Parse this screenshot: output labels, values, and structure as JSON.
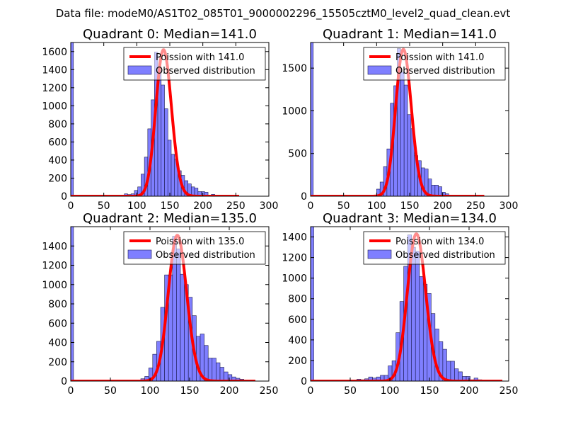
{
  "figure": {
    "suptitle": "Data file: modeM0/AS1T02_085T01_9000002296_15505cztM0_level2_quad_clean.evt"
  },
  "colors": {
    "hist_fill": "#7f7fff",
    "hist_edge": "#1a1a4d",
    "poisson_line": "#ff0000"
  },
  "chart_data": [
    {
      "type": "bar",
      "title": "Quadrant 0: Median=141.0",
      "xlabel": "",
      "ylabel": "",
      "xlim": [
        0,
        300
      ],
      "ylim": [
        0,
        1700
      ],
      "xticks": [
        0,
        50,
        100,
        150,
        200,
        250,
        300
      ],
      "yticks": [
        0,
        200,
        400,
        600,
        800,
        1000,
        1200,
        1400,
        1600
      ],
      "legend": {
        "placement": "top-right",
        "entries": [
          "Poission with 141.0",
          "Observed distribution"
        ]
      },
      "zero_bin": {
        "start": 0,
        "width": 4,
        "value": 1700
      },
      "bins": {
        "start": 71,
        "width": 5.07,
        "values": [
          5,
          13,
          26,
          18,
          26,
          64,
          103,
          244,
          432,
          745,
          1066,
          1593,
          1388,
          1230,
          967,
          620,
          463,
          411,
          282,
          231,
          172,
          136,
          103,
          90,
          51,
          51,
          44,
          13,
          21,
          13,
          5
        ]
      },
      "poisson": {
        "mean": 141.0,
        "peak": 1620,
        "x_range": [
          0,
          255
        ]
      }
    },
    {
      "type": "bar",
      "title": "Quadrant 1: Median=141.0",
      "xlabel": "",
      "ylabel": "",
      "xlim": [
        0,
        300
      ],
      "ylim": [
        0,
        1800
      ],
      "xticks": [
        0,
        50,
        100,
        150,
        200,
        250,
        300
      ],
      "yticks": [
        0,
        500,
        1000,
        1500
      ],
      "legend": {
        "placement": "top-right",
        "entries": [
          "Poission with 141.0",
          "Observed distribution"
        ]
      },
      "zero_bin": {
        "start": 0,
        "width": 4,
        "value": 1800
      },
      "bins": {
        "start": 79.2,
        "width": 5.2,
        "values": [
          14,
          14,
          14,
          14,
          83,
          166,
          346,
          554,
          1089,
          1294,
          1730,
          1454,
          1302,
          956,
          790,
          476,
          416,
          332,
          319,
          202,
          130,
          130,
          111,
          47,
          28,
          14,
          5,
          5,
          5,
          5,
          3,
          3
        ]
      },
      "poisson": {
        "mean": 141.0,
        "peak": 1720,
        "x_range": [
          0,
          263
        ]
      }
    },
    {
      "type": "bar",
      "title": "Quadrant 2: Median=135.0",
      "xlabel": "",
      "ylabel": "",
      "xlim": [
        0,
        250
      ],
      "ylim": [
        0,
        1600
      ],
      "xticks": [
        0,
        50,
        100,
        150,
        200,
        250
      ],
      "yticks": [
        0,
        200,
        400,
        600,
        800,
        1000,
        1200,
        1400
      ],
      "legend": {
        "placement": "top-right",
        "entries": [
          "Poission with 135.0",
          "Observed distribution"
        ]
      },
      "zero_bin": {
        "start": 0,
        "width": 3.5,
        "value": 1600
      },
      "bins": {
        "start": 68.4,
        "width": 5.0,
        "values": [
          12,
          12,
          12,
          12,
          24,
          48,
          136,
          278,
          412,
          764,
          1100,
          1100,
          1500,
          1370,
          1107,
          1000,
          869,
          678,
          464,
          488,
          369,
          238,
          238,
          190,
          143,
          95,
          67,
          43,
          29,
          19,
          12
        ]
      },
      "poisson": {
        "mean": 135.0,
        "peak": 1510,
        "x_range": [
          0,
          233
        ]
      }
    },
    {
      "type": "bar",
      "title": "Quadrant 3: Median=134.0",
      "xlabel": "",
      "ylabel": "",
      "xlim": [
        0,
        250
      ],
      "ylim": [
        0,
        1500
      ],
      "xticks": [
        0,
        50,
        100,
        150,
        200,
        250
      ],
      "yticks": [
        0,
        200,
        400,
        600,
        800,
        1000,
        1200,
        1400
      ],
      "legend": {
        "placement": "top-right",
        "entries": [
          "Poission with 134.0",
          "Observed distribution"
        ]
      },
      "zero_bin": {
        "start": 0,
        "width": 4,
        "value": 1500
      },
      "bins": {
        "start": 58.4,
        "width": 4.93,
        "values": [
          18,
          13,
          22,
          40,
          29,
          40,
          56,
          56,
          148,
          197,
          470,
          773,
          1115,
          1420,
          1300,
          1261,
          1015,
          941,
          851,
          656,
          506,
          383,
          309,
          193,
          193,
          119,
          90,
          45,
          45,
          13,
          29,
          13
        ]
      },
      "poisson": {
        "mean": 134.0,
        "peak": 1430,
        "x_range": [
          0,
          242
        ]
      }
    }
  ]
}
